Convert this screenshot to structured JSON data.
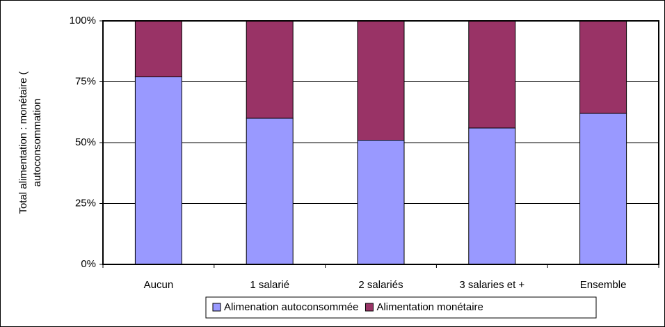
{
  "chart_data": {
    "type": "stacked_bar",
    "ylabel": [
      "Total alimentation : monétaire (",
      "autoconsommation"
    ],
    "categories": [
      "Aucun",
      "1 salarié",
      "2 salariés",
      "3 salaries et +",
      "Ensemble"
    ],
    "series": [
      {
        "name": "Alimenation autoconsommée",
        "color": "#9999ff",
        "values": [
          77,
          60,
          51,
          56,
          62
        ]
      },
      {
        "name": "Alimentation monétaire",
        "color": "#993366",
        "values": [
          23,
          40,
          49,
          44,
          38
        ]
      }
    ],
    "ylim": [
      0,
      100
    ],
    "yticks": [
      {
        "value": 0,
        "label": "0%"
      },
      {
        "value": 25,
        "label": "25%"
      },
      {
        "value": 50,
        "label": "50%"
      },
      {
        "value": 75,
        "label": "75%"
      },
      {
        "value": 100,
        "label": "100%"
      }
    ],
    "grid": true
  }
}
